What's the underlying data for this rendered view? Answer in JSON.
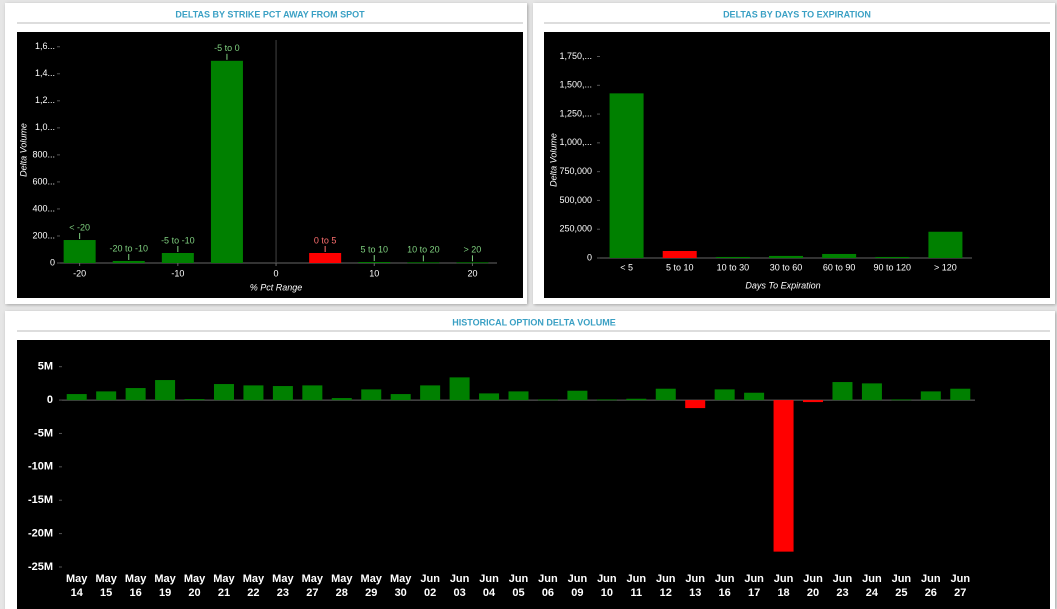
{
  "chart_data": [
    {
      "type": "bar",
      "title": "DELTAS BY STRIKE PCT AWAY FROM SPOT",
      "x_label": "% Pct Range",
      "y_label": "Delta Volume",
      "categories": [
        "< -20",
        "-20 to -10",
        "-5 to -10",
        "-5 to 0",
        "0 to 5",
        "5 to 10",
        "10 to 20",
        "> 20"
      ],
      "x": [
        -20,
        -15,
        -10,
        -5,
        5,
        10,
        15,
        20
      ],
      "values": [
        170000,
        15000,
        74000,
        1496000,
        74000,
        7000,
        5000,
        5000
      ],
      "colors": [
        "#008000",
        "#008000",
        "#008000",
        "#008000",
        "#ff0000",
        "#008000",
        "#008000",
        "#008000"
      ],
      "xlim": [
        -22,
        22.5
      ],
      "xticks": [
        -20,
        -10,
        0,
        10,
        20
      ],
      "ylim": [
        0,
        1650000
      ],
      "yticks": [
        0,
        {
          "value": 200000,
          "label": "200..."
        },
        {
          "value": 400000,
          "label": "400..."
        },
        {
          "value": 600000,
          "label": "600..."
        },
        {
          "value": 800000,
          "label": "800..."
        },
        {
          "value": 1000000,
          "label": "1,0..."
        },
        {
          "value": 1200000,
          "label": "1,2..."
        },
        {
          "value": 1400000,
          "label": "1,4..."
        },
        {
          "value": 1600000,
          "label": "1,6..."
        }
      ]
    },
    {
      "type": "bar",
      "title": "DELTAS BY DAYS TO EXPIRATION",
      "x_label": "Days To Expiration",
      "y_label": "Delta Volume",
      "categories": [
        "< 5",
        "5 to 10",
        "10 to 30",
        "30 to 60",
        "60 to 90",
        "90 to 120",
        "> 120"
      ],
      "values": [
        1430000,
        61000,
        9000,
        18000,
        35000,
        9000,
        228000
      ],
      "colors": [
        "#008000",
        "#ff0000",
        "#008000",
        "#008000",
        "#008000",
        "#008000",
        "#008000"
      ],
      "ylim": [
        0,
        1850000
      ],
      "yticks": [
        0,
        {
          "value": 250000,
          "label": "250,000"
        },
        {
          "value": 500000,
          "label": "500,000"
        },
        {
          "value": 750000,
          "label": "750,000"
        },
        {
          "value": 1000000,
          "label": "1,000,..."
        },
        {
          "value": 1250000,
          "label": "1,250,..."
        },
        {
          "value": 1500000,
          "label": "1,500,..."
        },
        {
          "value": 1750000,
          "label": "1,750,..."
        }
      ]
    },
    {
      "type": "bar",
      "title": "HISTORICAL OPTION DELTA VOLUME",
      "categories": [
        "May 14",
        "May 15",
        "May 16",
        "May 19",
        "May 20",
        "May 21",
        "May 22",
        "May 23",
        "May 27",
        "May 28",
        "May 29",
        "May 30",
        "Jun 02",
        "Jun 03",
        "Jun 04",
        "Jun 05",
        "Jun 06",
        "Jun 09",
        "Jun 10",
        "Jun 11",
        "Jun 12",
        "Jun 13",
        "Jun 16",
        "Jun 17",
        "Jun 18",
        "Jun 20",
        "Jun 23",
        "Jun 24",
        "Jun 25",
        "Jun 26",
        "Jun 27"
      ],
      "values": [
        900000,
        1300000,
        1800000,
        3000000,
        150000,
        2400000,
        2200000,
        2100000,
        2200000,
        300000,
        1600000,
        900000,
        2200000,
        3400000,
        1000000,
        1300000,
        100000,
        1400000,
        100000,
        200000,
        1700000,
        -1200000,
        1600000,
        1100000,
        -22700000,
        -300000,
        2700000,
        2500000,
        100000,
        1300000,
        1700000
      ],
      "color": "#008000",
      "negative_color": "#ff0000",
      "ylim": [
        -26200000,
        7500000
      ],
      "yticks": [
        {
          "value": 5000000,
          "label": "5M"
        },
        0,
        {
          "value": -5000000,
          "label": "-5M"
        },
        {
          "value": -10000000,
          "label": "-10M"
        },
        {
          "value": -15000000,
          "label": "-15M"
        },
        {
          "value": -20000000,
          "label": "-20M"
        },
        {
          "value": -25000000,
          "label": "-25M"
        }
      ]
    }
  ]
}
